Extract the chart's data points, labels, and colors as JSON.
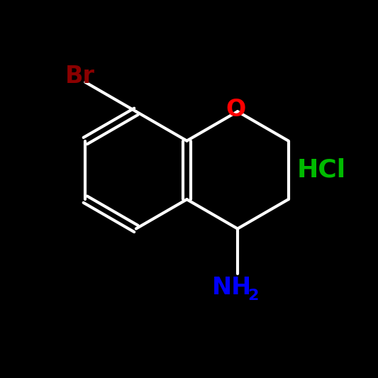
{
  "background_color": "#000000",
  "bond_color": "#ffffff",
  "bond_width": 3.0,
  "br_color": "#8b0000",
  "o_color": "#ff0000",
  "nh2_color": "#0000ff",
  "hcl_color": "#00bb00",
  "br_label": "Br",
  "o_label": "O",
  "nh2_label": "NH",
  "nh2_sub": "2",
  "hcl_label": "HCl",
  "font_size": 22
}
